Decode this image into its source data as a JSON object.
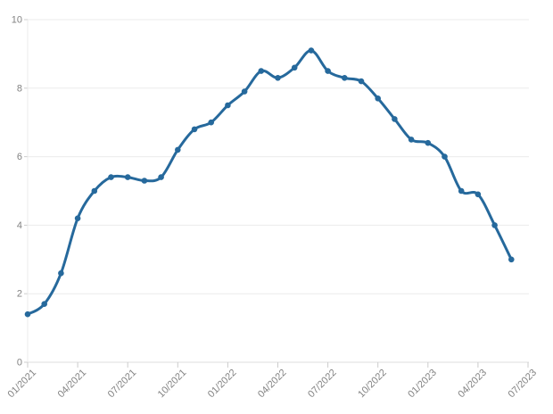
{
  "page": {
    "background_color": "#ffffff"
  },
  "chart_data": {
    "type": "line",
    "title": "",
    "series_count": 1,
    "x": [
      "01/2021",
      "02/2021",
      "03/2021",
      "04/2021",
      "05/2021",
      "06/2021",
      "07/2021",
      "08/2021",
      "09/2021",
      "10/2021",
      "11/2021",
      "12/2021",
      "01/2022",
      "02/2022",
      "03/2022",
      "04/2022",
      "05/2022",
      "06/2022",
      "07/2022",
      "08/2022",
      "09/2022",
      "10/2022",
      "11/2022",
      "12/2022",
      "01/2023",
      "02/2023",
      "03/2023",
      "04/2023",
      "05/2023",
      "06/2023"
    ],
    "values": [
      1.4,
      1.7,
      2.6,
      4.2,
      5.0,
      5.4,
      5.4,
      5.3,
      5.4,
      6.2,
      6.8,
      7.0,
      7.5,
      7.9,
      8.5,
      8.3,
      8.6,
      9.1,
      8.5,
      8.3,
      8.2,
      7.7,
      7.1,
      6.5,
      6.4,
      6.0,
      5.0,
      4.9,
      4.0,
      3.0
    ],
    "x_tick_labels": [
      "01/2021",
      "04/2021",
      "07/2021",
      "10/2021",
      "01/2022",
      "04/2022",
      "07/2022",
      "10/2022",
      "01/2023",
      "04/2023",
      "07/2023"
    ],
    "x_tick_every_months": 3,
    "x_axis_span_months": 30,
    "y_ticks": [
      0,
      2,
      4,
      6,
      8,
      10
    ],
    "ylim": [
      0,
      10
    ],
    "grid": "horizontal",
    "legend": "none",
    "xlabel": "",
    "ylabel": "",
    "line_color": "#26699c",
    "marker_color": "#26699c",
    "gridline_color": "#ebebeb",
    "axis_line_color": "#dedede",
    "tick_mark_color": "#cccccc",
    "label_color": "#828282"
  }
}
